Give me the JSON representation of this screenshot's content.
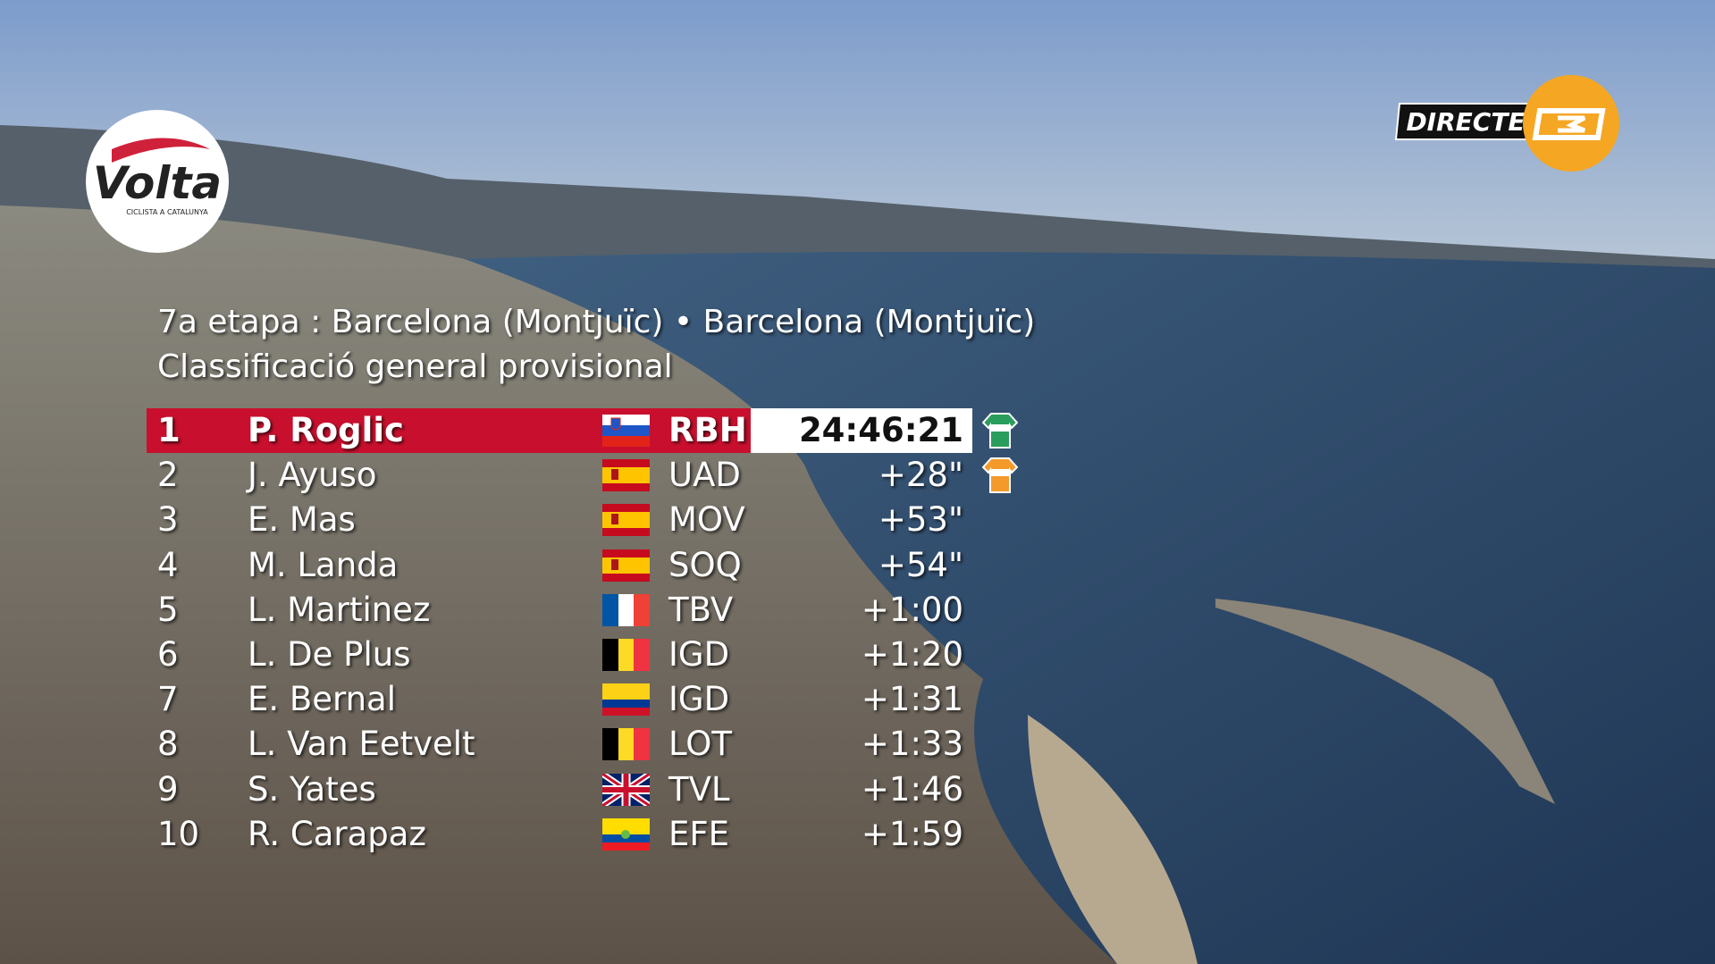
{
  "logos": {
    "volta": "Volta",
    "volta_sub": "CICLISTA A CATALUNYA",
    "live": "DIRECTE"
  },
  "header": {
    "stage": "7a etapa : Barcelona (Montjuïc) • Barcelona (Montjuïc)",
    "classification": "Classificació general provisional"
  },
  "table": {
    "rows": [
      [
        "1",
        "P. Roglic",
        "RBH",
        "24:46:21"
      ],
      [
        "2",
        "J. Ayuso",
        "UAD",
        "+28\""
      ],
      [
        "3",
        "E. Mas",
        "MOV",
        "+53\""
      ],
      [
        "4",
        "M. Landa",
        "SOQ",
        "+54\""
      ],
      [
        "5",
        "L. Martinez",
        "TBV",
        "+1:00"
      ],
      [
        "6",
        "L. De Plus",
        "IGD",
        "+1:20"
      ],
      [
        "7",
        "E. Bernal",
        "IGD",
        "+1:31"
      ],
      [
        "8",
        "L. Van Eetvelt",
        "LOT",
        "+1:33"
      ],
      [
        "9",
        "S. Yates",
        "TVL",
        "+1:46"
      ],
      [
        "10",
        "R. Carapaz",
        "EFE",
        "+1:59"
      ]
    ]
  }
}
